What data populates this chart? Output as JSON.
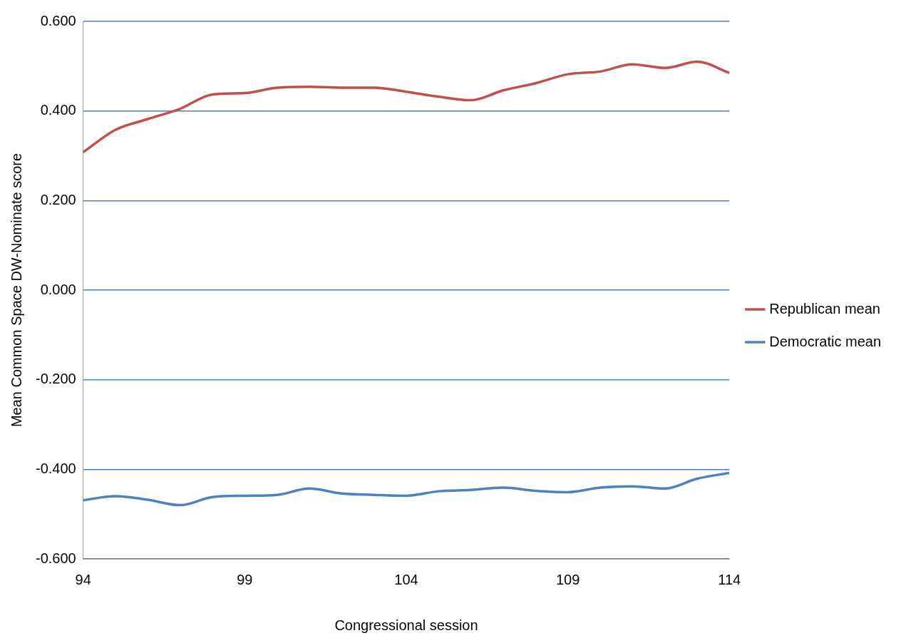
{
  "chart_data": {
    "type": "line",
    "xlabel": "Congressional session",
    "ylabel": "Mean Common Space DW-Nominate score",
    "x": [
      94,
      95,
      96,
      97,
      98,
      99,
      100,
      101,
      102,
      103,
      104,
      105,
      106,
      107,
      108,
      109,
      110,
      111,
      112,
      113,
      114
    ],
    "series": [
      {
        "name": "Republican mean",
        "color": "#c0504d",
        "values": [
          0.308,
          0.358,
          0.382,
          0.405,
          0.437,
          0.44,
          0.452,
          0.454,
          0.452,
          0.452,
          0.443,
          0.432,
          0.424,
          0.446,
          0.462,
          0.482,
          0.488,
          0.504,
          0.496,
          0.51,
          0.485
        ]
      },
      {
        "name": "Democratic mean",
        "color": "#4f81bd",
        "values": [
          -0.469,
          -0.46,
          -0.468,
          -0.48,
          -0.462,
          -0.459,
          -0.457,
          -0.443,
          -0.454,
          -0.457,
          -0.459,
          -0.449,
          -0.446,
          -0.441,
          -0.448,
          -0.451,
          -0.441,
          -0.438,
          -0.443,
          -0.421,
          -0.408
        ]
      }
    ],
    "xlim": [
      94,
      114
    ],
    "xticks": [
      94,
      99,
      104,
      109,
      114
    ],
    "ylim": [
      -0.6,
      0.6
    ],
    "yticks": [
      {
        "value": -0.6,
        "label": "-0.600"
      },
      {
        "value": -0.4,
        "label": "-0.400"
      },
      {
        "value": -0.2,
        "label": "-0.200"
      },
      {
        "value": 0,
        "label": "0.000"
      },
      {
        "value": 0.2,
        "label": "0.200"
      },
      {
        "value": 0.4,
        "label": "0.400"
      },
      {
        "value": 0.6,
        "label": "0.600"
      }
    ],
    "grid": "y",
    "legend": "right",
    "marker": "none",
    "line_style": "solid"
  }
}
